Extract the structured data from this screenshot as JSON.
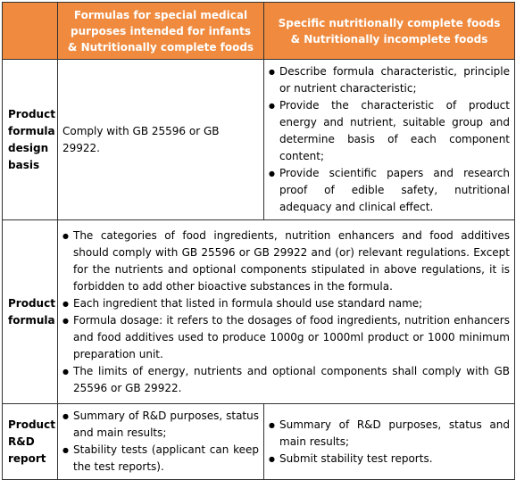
{
  "header": {
    "col0": "",
    "col1_line1": "Formulas for special medical",
    "col1_line2": "purposes intended for infants",
    "col1_line3": "& Nutritionally complete foods",
    "col2_line1": "Specific nutritionally complete foods",
    "col2_line2": "& Nutritionally incomplete foods"
  },
  "rows": {
    "design": {
      "label_l1": "Product",
      "label_l2": "formula",
      "label_l3": "design",
      "label_l4": "basis",
      "col1": "Comply with GB 25596 or GB 29922.",
      "col2_items": [
        "Describe formula characteristic, principle or nutrient characteristic;",
        "Provide the characteristic of product energy and nutrient, suitable group and determine basis of each component content;",
        "Provide scientific papers and research proof of edible safety, nutritional adequacy and clinical effect."
      ]
    },
    "formula": {
      "label_l1": "Product",
      "label_l2": "formula",
      "items": [
        "The categories of food ingredients, nutrition enhancers and food additives should comply with GB 25596 or GB 29922 and (or) relevant regulations. Except for the nutrients and optional components stipulated in above regulations, it is forbidden to add other bioactive substances in the formula.",
        "Each ingredient that listed in formula should use standard name;",
        "Formula dosage: it refers to the dosages of food ingredients, nutrition enhancers and food additives used to produce 1000g or 1000ml product or 1000 minimum preparation unit.",
        "The limits of energy, nutrients and optional components shall comply with GB 25596 or GB 29922."
      ]
    },
    "report": {
      "label_l1": "Product",
      "label_l2": "R&D",
      "label_l3": "report",
      "col1_items": [
        "Summary of R&D purposes, status and main results;",
        "Stability tests (applicant can keep the test reports)."
      ],
      "col2_items": [
        "Summary of R&D purposes, status and main results;",
        "Submit stability test reports."
      ]
    }
  },
  "colors": {
    "header_bg": "#ef8a3e",
    "header_text": "#ffffff",
    "border": "#333333"
  }
}
